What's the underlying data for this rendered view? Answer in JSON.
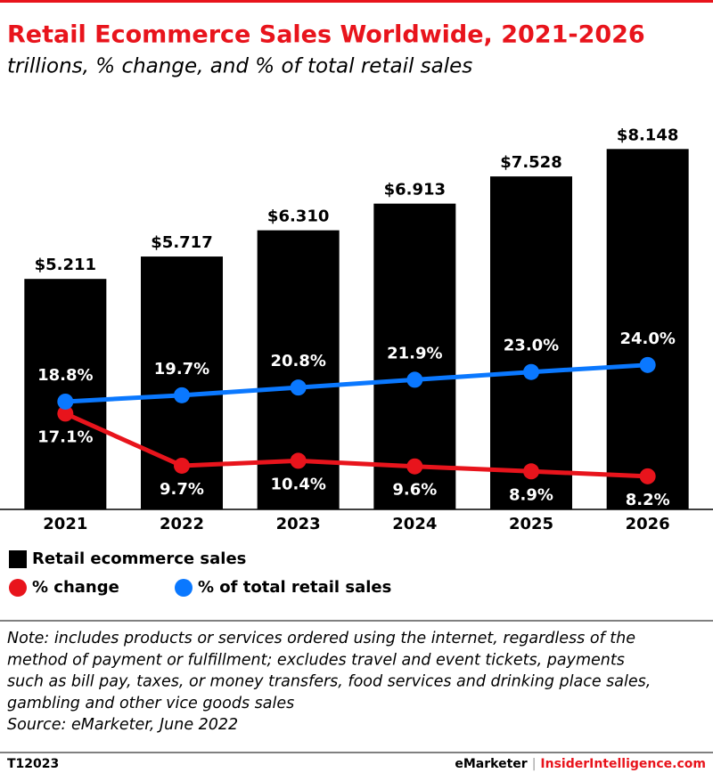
{
  "chart_data": {
    "type": "bar",
    "title": "Retail Ecommerce Sales Worldwide, 2021-2026",
    "subtitle": "trillions, % change, and % of total retail sales",
    "categories": [
      "2021",
      "2022",
      "2023",
      "2024",
      "2025",
      "2026"
    ],
    "series": [
      {
        "name": "Retail ecommerce sales",
        "type": "bar",
        "color": "#000000",
        "values": [
          5.211,
          5.717,
          6.31,
          6.913,
          7.528,
          8.148
        ],
        "value_labels": [
          "$5.211",
          "$5.717",
          "$6.310",
          "$6.913",
          "$7.528",
          "$8.148"
        ]
      },
      {
        "name": "% change",
        "type": "line",
        "axis": "y2",
        "color": "#e8141c",
        "label_side": "below",
        "values": [
          17.1,
          9.7,
          10.4,
          9.6,
          8.9,
          8.2
        ],
        "value_labels": [
          "17.1%",
          "9.7%",
          "10.4%",
          "9.6%",
          "8.9%",
          "8.2%"
        ]
      },
      {
        "name": "% of total retail sales",
        "type": "line",
        "axis": "y2",
        "color": "#0a78ff",
        "label_side": "above",
        "values": [
          18.8,
          19.7,
          20.8,
          21.9,
          23.0,
          24.0
        ],
        "value_labels": [
          "18.8%",
          "19.7%",
          "20.8%",
          "21.9%",
          "23.0%",
          "24.0%"
        ]
      }
    ],
    "ylim": [
      0,
      9
    ],
    "y2lim": [
      3.5,
      60
    ],
    "note": [
      "Note: includes products or services ordered using the internet, regardless of the",
      "method of payment or fulfillment; excludes travel and event tickets, payments",
      "such as bill pay, taxes, or money transfers, food services and drinking place sales,",
      "gambling and other vice goods sales"
    ],
    "source": "Source: eMarketer, June 2022",
    "footer": {
      "id": "T12023",
      "brand": "eMarketer",
      "separator": "|",
      "site": "InsiderIntelligence.com"
    }
  }
}
